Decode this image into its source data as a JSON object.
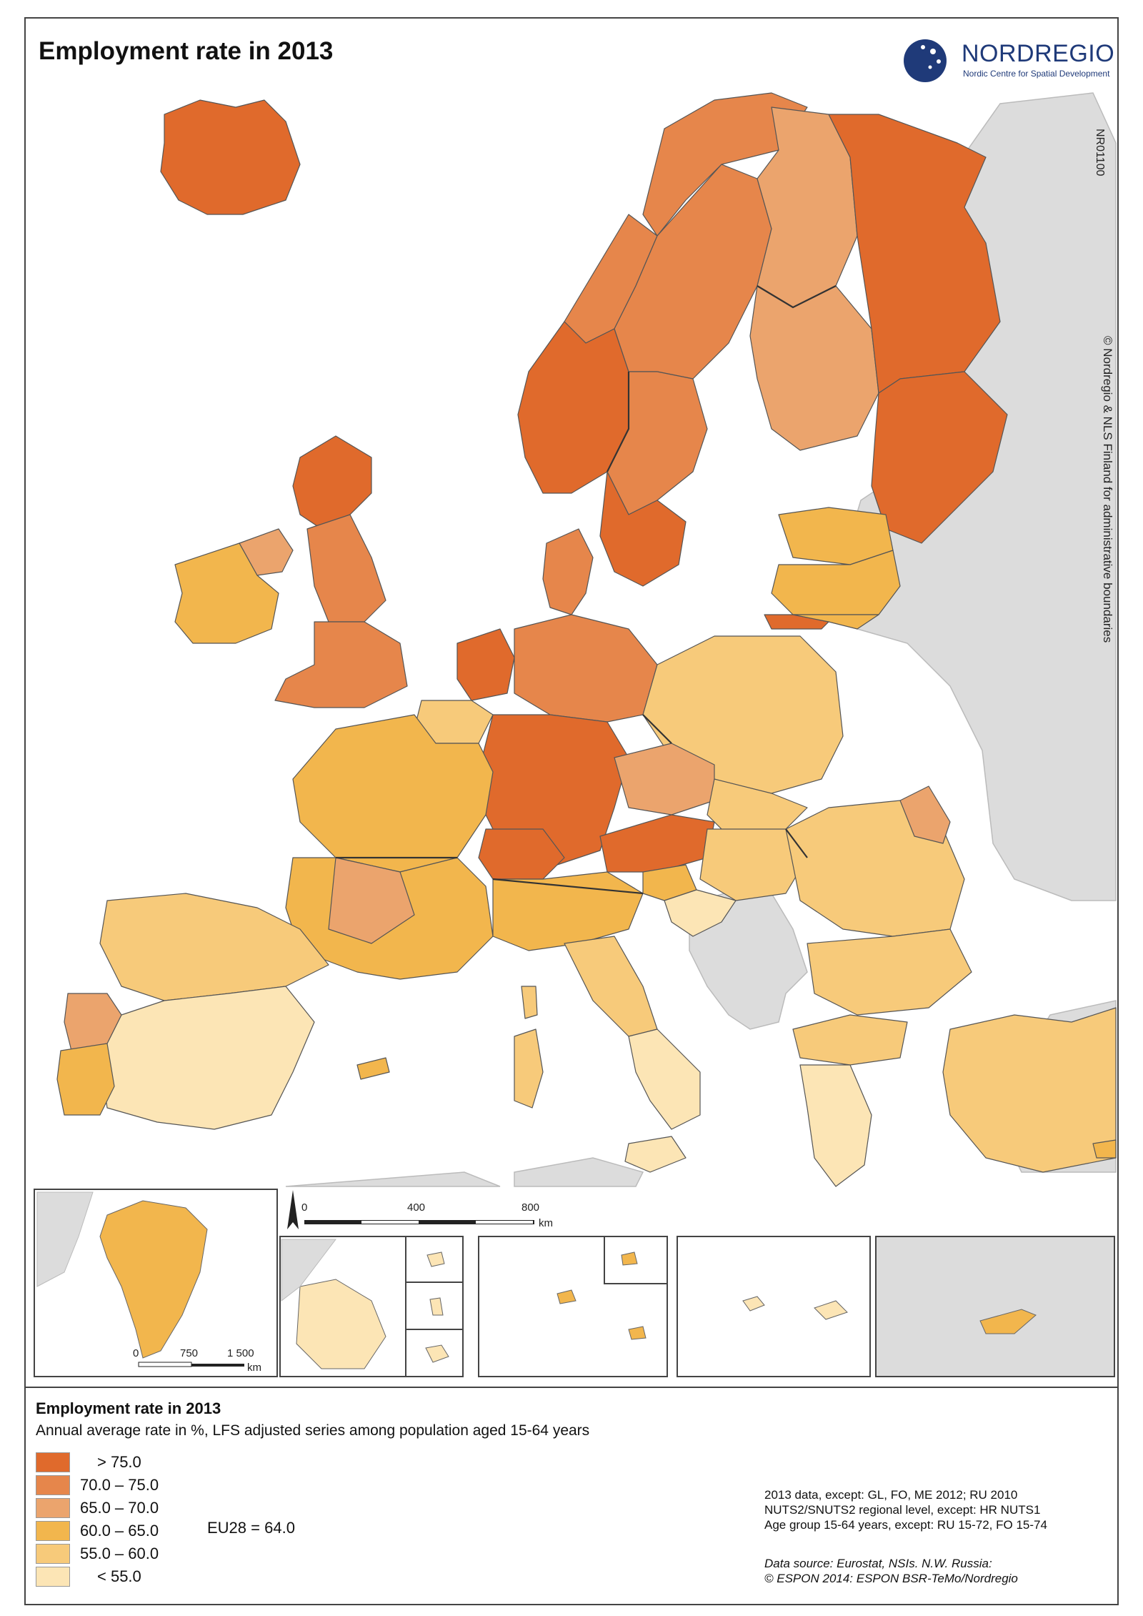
{
  "title": "Employment rate in 2013",
  "publisher": {
    "name": "NORDREGIO",
    "subtitle": "Nordic Centre for Spatial Development"
  },
  "map_code": "NR01100",
  "side_copyright": "© Nordregio & NLS Finland for administrative boundaries",
  "colors": {
    "gt75": "#e06a2c",
    "c70_75": "#e6864b",
    "c65_70": "#eba46d",
    "c60_65": "#f2b64d",
    "c55_60": "#f7ca7a",
    "lt55": "#fce5b5",
    "non_eu": "#dcdcdc",
    "sea": "#ffffff",
    "border": "#555555"
  },
  "scale_main": {
    "ticks": [
      "0",
      "400",
      "800"
    ],
    "unit": "km"
  },
  "scale_greenland": {
    "ticks": [
      "0",
      "750",
      "1 500"
    ],
    "unit": "km"
  },
  "legend": {
    "title": "Employment rate in 2013",
    "subtitle": "Annual average rate in %, LFS adjusted series among population aged 15-64 years",
    "classes": [
      {
        "label": "> 75.0",
        "color": "#e06a2c"
      },
      {
        "label": "70.0 – 75.0",
        "color": "#e6864b"
      },
      {
        "label": "65.0 – 70.0",
        "color": "#eba46d"
      },
      {
        "label": "60.0 – 65.0",
        "color": "#f2b64d"
      },
      {
        "label": "55.0 – 60.0",
        "color": "#f7ca7a"
      },
      {
        "label": "< 55.0",
        "color": "#fce5b5"
      }
    ],
    "eu_average": "EU28 = 64.0"
  },
  "notes": [
    "2013 data, except: GL, FO, ME 2012; RU 2010",
    "NUTS2/SNUTS2 regional level, except: HR NUTS1",
    "Age group 15-64 years, except: RU 15-72, FO 15-74"
  ],
  "source": [
    "Data source: Eurostat, NSIs. N.W. Russia:",
    "© ESPON 2014: ESPON BSR-TeMo/Nordregio"
  ]
}
